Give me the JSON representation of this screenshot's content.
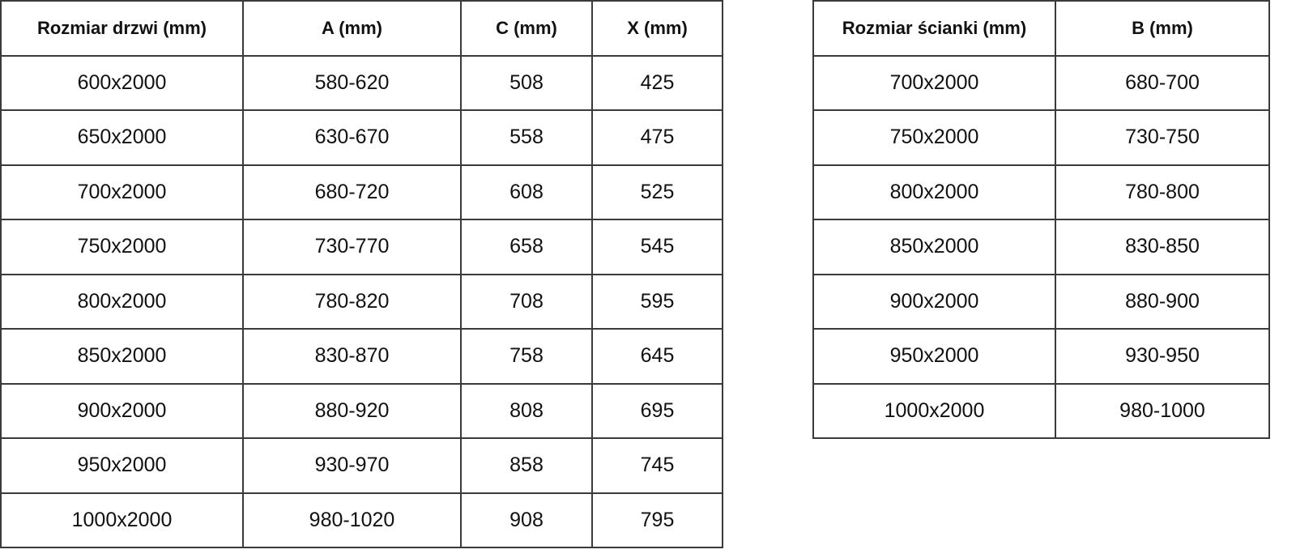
{
  "door_table": {
    "headers": [
      "Rozmiar drzwi (mm)",
      "A (mm)",
      "C (mm)",
      "X (mm)"
    ],
    "rows": [
      [
        "600x2000",
        "580-620",
        "508",
        "425"
      ],
      [
        "650x2000",
        "630-670",
        "558",
        "475"
      ],
      [
        "700x2000",
        "680-720",
        "608",
        "525"
      ],
      [
        "750x2000",
        "730-770",
        "658",
        "545"
      ],
      [
        "800x2000",
        "780-820",
        "708",
        "595"
      ],
      [
        "850x2000",
        "830-870",
        "758",
        "645"
      ],
      [
        "900x2000",
        "880-920",
        "808",
        "695"
      ],
      [
        "950x2000",
        "930-970",
        "858",
        "745"
      ],
      [
        "1000x2000",
        "980-1020",
        "908",
        "795"
      ]
    ]
  },
  "wall_table": {
    "headers": [
      "Rozmiar ścianki (mm)",
      "B (mm)"
    ],
    "rows": [
      [
        "700x2000",
        "680-700"
      ],
      [
        "750x2000",
        "730-750"
      ],
      [
        "800x2000",
        "780-800"
      ],
      [
        "850x2000",
        "830-850"
      ],
      [
        "900x2000",
        "880-900"
      ],
      [
        "950x2000",
        "930-950"
      ],
      [
        "1000x2000",
        "980-1000"
      ]
    ]
  }
}
